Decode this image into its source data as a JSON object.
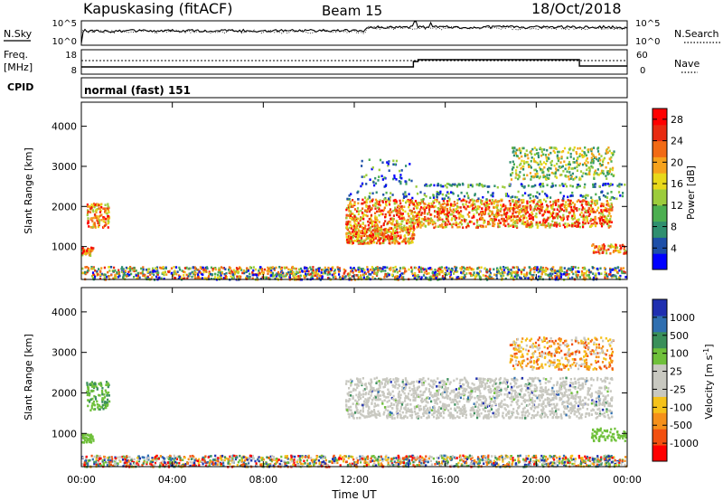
{
  "header": {
    "station": "Kapuskasing (fitACF)",
    "beam": "Beam 15",
    "date": "18/Oct/2018",
    "cpid_label": "CPID",
    "program": "normal (fast) 151"
  },
  "noise_panel": {
    "left_label": "N.Sky",
    "left_ticks": [
      "10^5",
      "10^0"
    ],
    "right_ticks": [
      "10^5",
      "10^0"
    ],
    "right_label": "N.Search"
  },
  "freq_panel": {
    "left_label_1": "Freq.",
    "left_label_2": "[MHz]",
    "left_ticks": [
      "18",
      "8"
    ],
    "right_ticks": [
      "60",
      "0"
    ],
    "right_label": "Nave"
  },
  "time_axis": {
    "label": "Time UT",
    "ticks": [
      "00:00",
      "04:00",
      "08:00",
      "12:00",
      "16:00",
      "20:00",
      "00:00"
    ]
  },
  "colors": {
    "power_scale": [
      "#0000ff",
      "#1d4fa8",
      "#2f8f6f",
      "#4caf50",
      "#9ccc3c",
      "#e8d81a",
      "#f6a21c",
      "#f26a14",
      "#e82a10",
      "#ff0000"
    ],
    "velocity_scale": [
      "#1f2fb0",
      "#2f6fb0",
      "#3a8f5a",
      "#6fc03a",
      "#c8c8c0",
      "#c8c8c0",
      "#f5c21a",
      "#f5901a",
      "#f25010",
      "#ff0000"
    ]
  },
  "chart_data": [
    {
      "type": "heatmap",
      "title": "Power",
      "ylabel": "Slant Range [km]",
      "y_ticks": [
        "1000",
        "2000",
        "3000",
        "4000"
      ],
      "ylim": [
        180,
        4600
      ],
      "x_ticks": [
        "00:00",
        "04:00",
        "08:00",
        "12:00",
        "16:00",
        "20:00",
        "00:00"
      ],
      "xlim_hours": [
        0,
        24
      ],
      "colorbar_label": "Power [dB]",
      "colorbar_ticks": [
        "4",
        "8",
        "12",
        "16",
        "20",
        "24",
        "28"
      ],
      "colorbar_range": [
        0,
        30
      ]
    },
    {
      "type": "heatmap",
      "title": "Velocity",
      "ylabel": "Slant Range [km]",
      "y_ticks": [
        "1000",
        "2000",
        "3000",
        "4000"
      ],
      "ylim": [
        180,
        4600
      ],
      "x_ticks": [
        "00:00",
        "04:00",
        "08:00",
        "12:00",
        "16:00",
        "20:00",
        "00:00"
      ],
      "xlim_hours": [
        0,
        24
      ],
      "colorbar_label": "Velocity [m s^-1]",
      "colorbar_ticks": [
        "1000",
        "500",
        "100",
        "25",
        "-25",
        "-100",
        "-500",
        "-1000"
      ]
    }
  ]
}
